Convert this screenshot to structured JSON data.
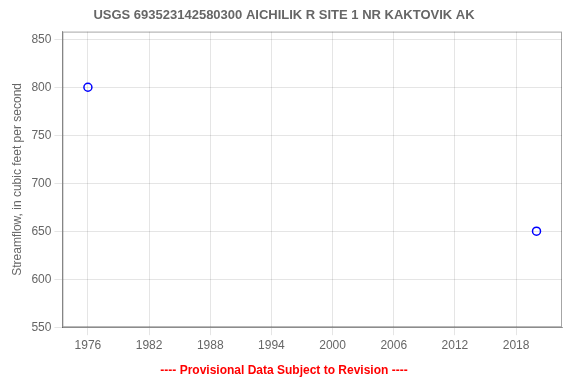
{
  "chart_data": {
    "type": "scatter",
    "title": "USGS 693523142580300 AICHILIK R SITE 1 NR KAKTOVIK AK",
    "ylabel": "Streamflow, in cubic feet per second",
    "x": [
      1976,
      2020
    ],
    "values": [
      800,
      650
    ],
    "color": "blue",
    "marker": "open_circle",
    "xlim": [
      1973.5,
      2022.5
    ],
    "ylim": [
      550,
      858
    ],
    "xticks": [
      1976,
      1982,
      1988,
      1994,
      2000,
      2006,
      2012,
      2018
    ],
    "yticks": [
      550,
      600,
      650,
      700,
      750,
      800,
      850
    ],
    "grid": true,
    "annotations": [
      {
        "text": "---- Provisional Data Subject to Revision ----",
        "color": "red"
      }
    ]
  }
}
